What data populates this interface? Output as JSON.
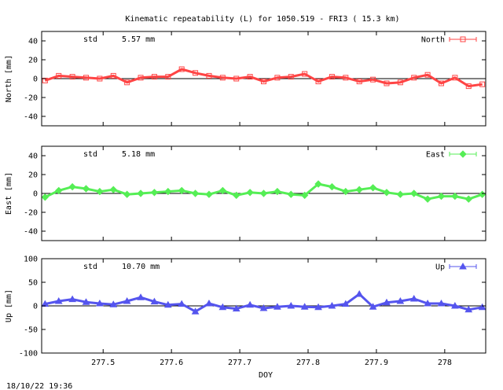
{
  "title": "Kinematic repeatability (L) for 1050.519 - FRI3  ( 15.3 km)",
  "timestamp": "18/10/22 19:36",
  "xlabel": "DOY",
  "chart_data": [
    {
      "type": "scatter",
      "legend": "North",
      "ylabel": "North [mm]",
      "std_label": "std",
      "std_value": "5.57 mm",
      "color": "#ff4444",
      "marker": "square",
      "xlim": [
        277.41,
        278.06
      ],
      "ylim": [
        -50,
        50
      ],
      "yticks": [
        -40,
        -20,
        0,
        20,
        40
      ],
      "grid": false,
      "legend_position": "top-right",
      "zero_line": true,
      "series": [
        {
          "name": "North",
          "x": [
            277.415,
            277.435,
            277.455,
            277.475,
            277.495,
            277.515,
            277.535,
            277.555,
            277.575,
            277.595,
            277.615,
            277.635,
            277.655,
            277.675,
            277.695,
            277.715,
            277.735,
            277.755,
            277.775,
            277.795,
            277.815,
            277.835,
            277.855,
            277.875,
            277.895,
            277.915,
            277.935,
            277.955,
            277.975,
            277.995,
            278.015,
            278.035,
            278.055
          ],
          "y": [
            -2,
            3,
            2,
            1,
            0,
            3,
            -4,
            1,
            2,
            2,
            10,
            6,
            3,
            1,
            0,
            2,
            -3,
            1,
            2,
            5,
            -3,
            2,
            1,
            -3,
            -1,
            -5,
            -4,
            1,
            4,
            -5,
            1,
            -8,
            -6
          ]
        }
      ]
    },
    {
      "type": "scatter",
      "legend": "East",
      "ylabel": "East [mm]",
      "std_label": "std",
      "std_value": "5.18 mm",
      "color": "#55ee55",
      "marker": "diamond",
      "xlim": [
        277.41,
        278.06
      ],
      "ylim": [
        -50,
        50
      ],
      "yticks": [
        -40,
        -20,
        0,
        20,
        40
      ],
      "grid": false,
      "legend_position": "top-right",
      "zero_line": true,
      "series": [
        {
          "name": "East",
          "x": [
            277.415,
            277.435,
            277.455,
            277.475,
            277.495,
            277.515,
            277.535,
            277.555,
            277.575,
            277.595,
            277.615,
            277.635,
            277.655,
            277.675,
            277.695,
            277.715,
            277.735,
            277.755,
            277.775,
            277.795,
            277.815,
            277.835,
            277.855,
            277.875,
            277.895,
            277.915,
            277.935,
            277.955,
            277.975,
            277.995,
            278.015,
            278.035,
            278.055
          ],
          "y": [
            -4,
            3,
            7,
            5,
            2,
            4,
            -1,
            0,
            1,
            2,
            3,
            0,
            -1,
            3,
            -2,
            1,
            0,
            2,
            -1,
            -2,
            10,
            7,
            2,
            4,
            6,
            1,
            -1,
            0,
            -6,
            -3,
            -3,
            -6,
            -1
          ]
        }
      ]
    },
    {
      "type": "scatter",
      "legend": "Up",
      "ylabel": "Up [mm]",
      "std_label": "std",
      "std_value": "10.70 mm",
      "color": "#5555ee",
      "marker": "triangle",
      "xlim": [
        277.41,
        278.06
      ],
      "ylim": [
        -100,
        100
      ],
      "yticks": [
        -100,
        -50,
        0,
        50,
        100
      ],
      "grid": false,
      "legend_position": "top-right",
      "zero_line": true,
      "series": [
        {
          "name": "Up",
          "x": [
            277.415,
            277.435,
            277.455,
            277.475,
            277.495,
            277.515,
            277.535,
            277.555,
            277.575,
            277.595,
            277.615,
            277.635,
            277.655,
            277.675,
            277.695,
            277.715,
            277.735,
            277.755,
            277.775,
            277.795,
            277.815,
            277.835,
            277.855,
            277.875,
            277.895,
            277.915,
            277.935,
            277.955,
            277.975,
            277.995,
            278.015,
            278.035,
            278.055
          ],
          "y": [
            4,
            10,
            14,
            8,
            5,
            3,
            10,
            18,
            9,
            2,
            4,
            -12,
            5,
            -3,
            -6,
            2,
            -5,
            -2,
            0,
            -2,
            -3,
            0,
            4,
            25,
            -2,
            7,
            10,
            15,
            5,
            5,
            0,
            -8,
            -3
          ]
        }
      ]
    }
  ],
  "xticks": [
    277.5,
    277.6,
    277.7,
    277.8,
    277.9,
    278
  ],
  "xtick_labels": [
    "277.5",
    "277.6",
    "277.7",
    "277.8",
    "277.9",
    "278"
  ]
}
